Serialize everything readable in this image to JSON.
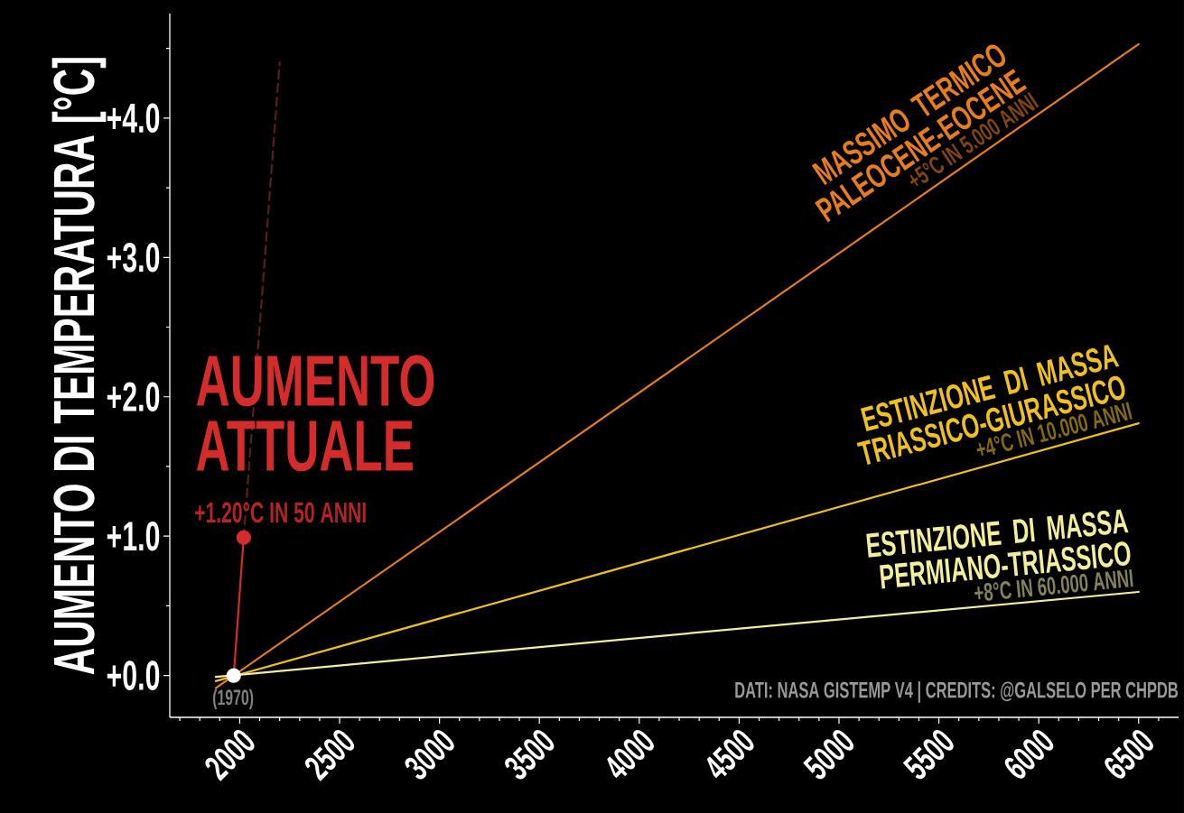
{
  "chart_data": {
    "type": "line",
    "ylabel": "AUMENTO DI TEMPERATURA [°C]",
    "xlim": [
      1650,
      6700
    ],
    "ylim": [
      -0.3,
      4.75
    ],
    "xticks": [
      2000,
      2500,
      3000,
      3500,
      4000,
      4500,
      5000,
      5500,
      6000,
      6500,
      {
        "value": 1700,
        "label": null
      },
      {
        "value": 1800,
        "label": null
      },
      {
        "value": 1900,
        "label": null
      },
      {
        "value": 2100,
        "label": null
      },
      {
        "value": 2200,
        "label": null
      },
      {
        "value": 2300,
        "label": null
      },
      {
        "value": 2400,
        "label": null
      },
      {
        "value": 2600,
        "label": null
      },
      {
        "value": 2700,
        "label": null
      },
      {
        "value": 2800,
        "label": null
      },
      {
        "value": 2900,
        "label": null
      },
      {
        "value": 3100,
        "label": null
      },
      {
        "value": 3200,
        "label": null
      },
      {
        "value": 3300,
        "label": null
      },
      {
        "value": 3400,
        "label": null
      },
      {
        "value": 3600,
        "label": null
      },
      {
        "value": 3700,
        "label": null
      },
      {
        "value": 3800,
        "label": null
      },
      {
        "value": 3900,
        "label": null
      },
      {
        "value": 4100,
        "label": null
      },
      {
        "value": 4200,
        "label": null
      },
      {
        "value": 4300,
        "label": null
      },
      {
        "value": 4400,
        "label": null
      },
      {
        "value": 4600,
        "label": null
      },
      {
        "value": 4700,
        "label": null
      },
      {
        "value": 4800,
        "label": null
      },
      {
        "value": 4900,
        "label": null
      },
      {
        "value": 5100,
        "label": null
      },
      {
        "value": 5200,
        "label": null
      },
      {
        "value": 5300,
        "label": null
      },
      {
        "value": 5400,
        "label": null
      },
      {
        "value": 5600,
        "label": null
      },
      {
        "value": 5700,
        "label": null
      },
      {
        "value": 5800,
        "label": null
      },
      {
        "value": 5900,
        "label": null
      },
      {
        "value": 6100,
        "label": null
      },
      {
        "value": 6200,
        "label": null
      },
      {
        "value": 6300,
        "label": null
      },
      {
        "value": 6400,
        "label": null
      },
      {
        "value": 6600,
        "label": null
      }
    ],
    "yticks": [
      {
        "value": 0,
        "label": "+0.0"
      },
      {
        "value": 1,
        "label": "+1.0"
      },
      {
        "value": 2,
        "label": "+2.0"
      },
      {
        "value": 3,
        "label": "+3.0"
      },
      {
        "value": 4,
        "label": "+4.0"
      },
      {
        "value": 0.5,
        "label": null
      },
      {
        "value": 1.5,
        "label": null
      },
      {
        "value": 2.5,
        "label": null
      },
      {
        "value": 3.5,
        "label": null
      },
      {
        "value": 4.5,
        "label": null
      }
    ],
    "series": [
      {
        "color": "#5a1e1e",
        "x": [
          2020,
          2200
        ],
        "values": [
          0.99,
          4.4
        ],
        "line_style": "dashed"
      },
      {
        "color": "#e87d1e",
        "x": [
          1880,
          6500
        ],
        "values": [
          -0.09,
          4.53
        ]
      },
      {
        "color": "#f0c020",
        "x": [
          1880,
          6500
        ],
        "values": [
          -0.04,
          1.81
        ]
      },
      {
        "color": "#f2ee9a",
        "x": [
          1880,
          6500
        ],
        "values": [
          -0.01,
          0.6
        ]
      },
      {
        "color": "#d42b2b",
        "x": [
          1970,
          2020
        ],
        "values": [
          0,
          0.99
        ],
        "marker": "circle"
      },
      {
        "type": "scatter",
        "color": "#ffffff",
        "x": [
          1970
        ],
        "values": [
          0
        ],
        "marker": "circle"
      }
    ],
    "annotations": [
      "AUMENTO ATTUALE",
      "+1.20°C IN 50 ANNI",
      "(1970)",
      "MASSIMO TERMICO PALEOCENE-EOCENE",
      "+5°C IN 5.000 ANNI",
      "ESTINZIONE DI MASSA TRIASSICO-GIURASSICO",
      "+4°C IN 10.000 ANNI",
      "ESTINZIONE DI MASSA PERMIANO-TRIASSICO",
      "+8°C IN 60.000 ANNI",
      "DATI: NASA GISTEMP V4 | CREDITS: @GALSELO PER CHPDB"
    ]
  }
}
